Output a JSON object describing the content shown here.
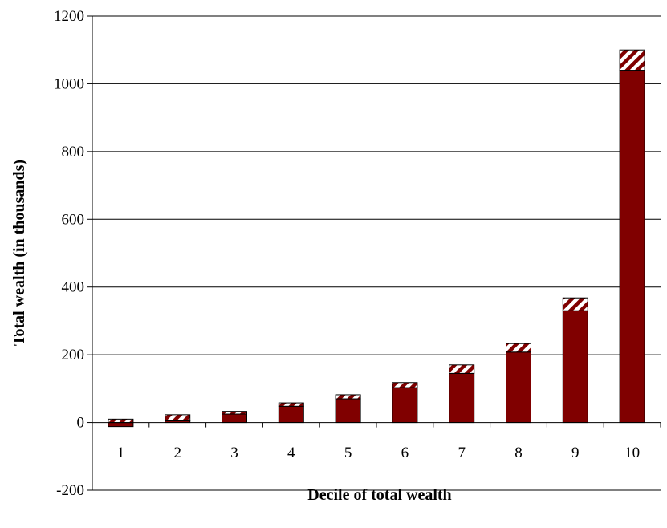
{
  "chart_data": {
    "type": "bar",
    "stacked": true,
    "title": "",
    "xlabel": "Decile of total wealth",
    "ylabel": "Total wealth (in thousands)",
    "ylim": [
      -200,
      1200
    ],
    "yticks": [
      -200,
      0,
      200,
      400,
      600,
      800,
      1000,
      1200
    ],
    "ytick_labels": [
      "-200",
      "0",
      "200",
      "400",
      "600",
      "800",
      "1000",
      "1200"
    ],
    "grid": true,
    "legend": "none",
    "categories": [
      "1",
      "2",
      "3",
      "4",
      "5",
      "6",
      "7",
      "8",
      "9",
      "10"
    ],
    "series": [
      {
        "values": [
          -12,
          5,
          25,
          48,
          70,
          103,
          145,
          208,
          330,
          1040
        ],
        "color": "#800000",
        "pattern": "solid"
      },
      {
        "values": [
          10,
          18,
          8,
          10,
          12,
          15,
          25,
          25,
          38,
          60
        ],
        "color": "#800000",
        "pattern": "diagonal-hatch"
      }
    ]
  }
}
